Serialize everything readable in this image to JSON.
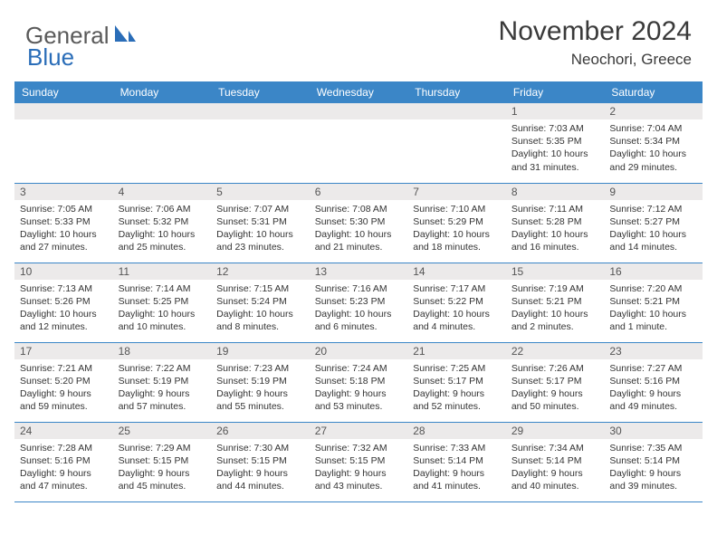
{
  "brand": {
    "part1": "General",
    "part2": "Blue"
  },
  "title": "November 2024",
  "location": "Neochori, Greece",
  "colors": {
    "header_bg": "#3b86c7",
    "header_text": "#ffffff",
    "daynum_bg": "#eceaea",
    "border": "#3b86c7",
    "logo_gray": "#5a5a5a",
    "logo_blue": "#2a6db8"
  },
  "weekdays": [
    "Sunday",
    "Monday",
    "Tuesday",
    "Wednesday",
    "Thursday",
    "Friday",
    "Saturday"
  ],
  "weeks": [
    [
      {
        "n": "",
        "lines": []
      },
      {
        "n": "",
        "lines": []
      },
      {
        "n": "",
        "lines": []
      },
      {
        "n": "",
        "lines": []
      },
      {
        "n": "",
        "lines": []
      },
      {
        "n": "1",
        "lines": [
          "Sunrise: 7:03 AM",
          "Sunset: 5:35 PM",
          "Daylight: 10 hours",
          "and 31 minutes."
        ]
      },
      {
        "n": "2",
        "lines": [
          "Sunrise: 7:04 AM",
          "Sunset: 5:34 PM",
          "Daylight: 10 hours",
          "and 29 minutes."
        ]
      }
    ],
    [
      {
        "n": "3",
        "lines": [
          "Sunrise: 7:05 AM",
          "Sunset: 5:33 PM",
          "Daylight: 10 hours",
          "and 27 minutes."
        ]
      },
      {
        "n": "4",
        "lines": [
          "Sunrise: 7:06 AM",
          "Sunset: 5:32 PM",
          "Daylight: 10 hours",
          "and 25 minutes."
        ]
      },
      {
        "n": "5",
        "lines": [
          "Sunrise: 7:07 AM",
          "Sunset: 5:31 PM",
          "Daylight: 10 hours",
          "and 23 minutes."
        ]
      },
      {
        "n": "6",
        "lines": [
          "Sunrise: 7:08 AM",
          "Sunset: 5:30 PM",
          "Daylight: 10 hours",
          "and 21 minutes."
        ]
      },
      {
        "n": "7",
        "lines": [
          "Sunrise: 7:10 AM",
          "Sunset: 5:29 PM",
          "Daylight: 10 hours",
          "and 18 minutes."
        ]
      },
      {
        "n": "8",
        "lines": [
          "Sunrise: 7:11 AM",
          "Sunset: 5:28 PM",
          "Daylight: 10 hours",
          "and 16 minutes."
        ]
      },
      {
        "n": "9",
        "lines": [
          "Sunrise: 7:12 AM",
          "Sunset: 5:27 PM",
          "Daylight: 10 hours",
          "and 14 minutes."
        ]
      }
    ],
    [
      {
        "n": "10",
        "lines": [
          "Sunrise: 7:13 AM",
          "Sunset: 5:26 PM",
          "Daylight: 10 hours",
          "and 12 minutes."
        ]
      },
      {
        "n": "11",
        "lines": [
          "Sunrise: 7:14 AM",
          "Sunset: 5:25 PM",
          "Daylight: 10 hours",
          "and 10 minutes."
        ]
      },
      {
        "n": "12",
        "lines": [
          "Sunrise: 7:15 AM",
          "Sunset: 5:24 PM",
          "Daylight: 10 hours",
          "and 8 minutes."
        ]
      },
      {
        "n": "13",
        "lines": [
          "Sunrise: 7:16 AM",
          "Sunset: 5:23 PM",
          "Daylight: 10 hours",
          "and 6 minutes."
        ]
      },
      {
        "n": "14",
        "lines": [
          "Sunrise: 7:17 AM",
          "Sunset: 5:22 PM",
          "Daylight: 10 hours",
          "and 4 minutes."
        ]
      },
      {
        "n": "15",
        "lines": [
          "Sunrise: 7:19 AM",
          "Sunset: 5:21 PM",
          "Daylight: 10 hours",
          "and 2 minutes."
        ]
      },
      {
        "n": "16",
        "lines": [
          "Sunrise: 7:20 AM",
          "Sunset: 5:21 PM",
          "Daylight: 10 hours",
          "and 1 minute."
        ]
      }
    ],
    [
      {
        "n": "17",
        "lines": [
          "Sunrise: 7:21 AM",
          "Sunset: 5:20 PM",
          "Daylight: 9 hours",
          "and 59 minutes."
        ]
      },
      {
        "n": "18",
        "lines": [
          "Sunrise: 7:22 AM",
          "Sunset: 5:19 PM",
          "Daylight: 9 hours",
          "and 57 minutes."
        ]
      },
      {
        "n": "19",
        "lines": [
          "Sunrise: 7:23 AM",
          "Sunset: 5:19 PM",
          "Daylight: 9 hours",
          "and 55 minutes."
        ]
      },
      {
        "n": "20",
        "lines": [
          "Sunrise: 7:24 AM",
          "Sunset: 5:18 PM",
          "Daylight: 9 hours",
          "and 53 minutes."
        ]
      },
      {
        "n": "21",
        "lines": [
          "Sunrise: 7:25 AM",
          "Sunset: 5:17 PM",
          "Daylight: 9 hours",
          "and 52 minutes."
        ]
      },
      {
        "n": "22",
        "lines": [
          "Sunrise: 7:26 AM",
          "Sunset: 5:17 PM",
          "Daylight: 9 hours",
          "and 50 minutes."
        ]
      },
      {
        "n": "23",
        "lines": [
          "Sunrise: 7:27 AM",
          "Sunset: 5:16 PM",
          "Daylight: 9 hours",
          "and 49 minutes."
        ]
      }
    ],
    [
      {
        "n": "24",
        "lines": [
          "Sunrise: 7:28 AM",
          "Sunset: 5:16 PM",
          "Daylight: 9 hours",
          "and 47 minutes."
        ]
      },
      {
        "n": "25",
        "lines": [
          "Sunrise: 7:29 AM",
          "Sunset: 5:15 PM",
          "Daylight: 9 hours",
          "and 45 minutes."
        ]
      },
      {
        "n": "26",
        "lines": [
          "Sunrise: 7:30 AM",
          "Sunset: 5:15 PM",
          "Daylight: 9 hours",
          "and 44 minutes."
        ]
      },
      {
        "n": "27",
        "lines": [
          "Sunrise: 7:32 AM",
          "Sunset: 5:15 PM",
          "Daylight: 9 hours",
          "and 43 minutes."
        ]
      },
      {
        "n": "28",
        "lines": [
          "Sunrise: 7:33 AM",
          "Sunset: 5:14 PM",
          "Daylight: 9 hours",
          "and 41 minutes."
        ]
      },
      {
        "n": "29",
        "lines": [
          "Sunrise: 7:34 AM",
          "Sunset: 5:14 PM",
          "Daylight: 9 hours",
          "and 40 minutes."
        ]
      },
      {
        "n": "30",
        "lines": [
          "Sunrise: 7:35 AM",
          "Sunset: 5:14 PM",
          "Daylight: 9 hours",
          "and 39 minutes."
        ]
      }
    ]
  ]
}
